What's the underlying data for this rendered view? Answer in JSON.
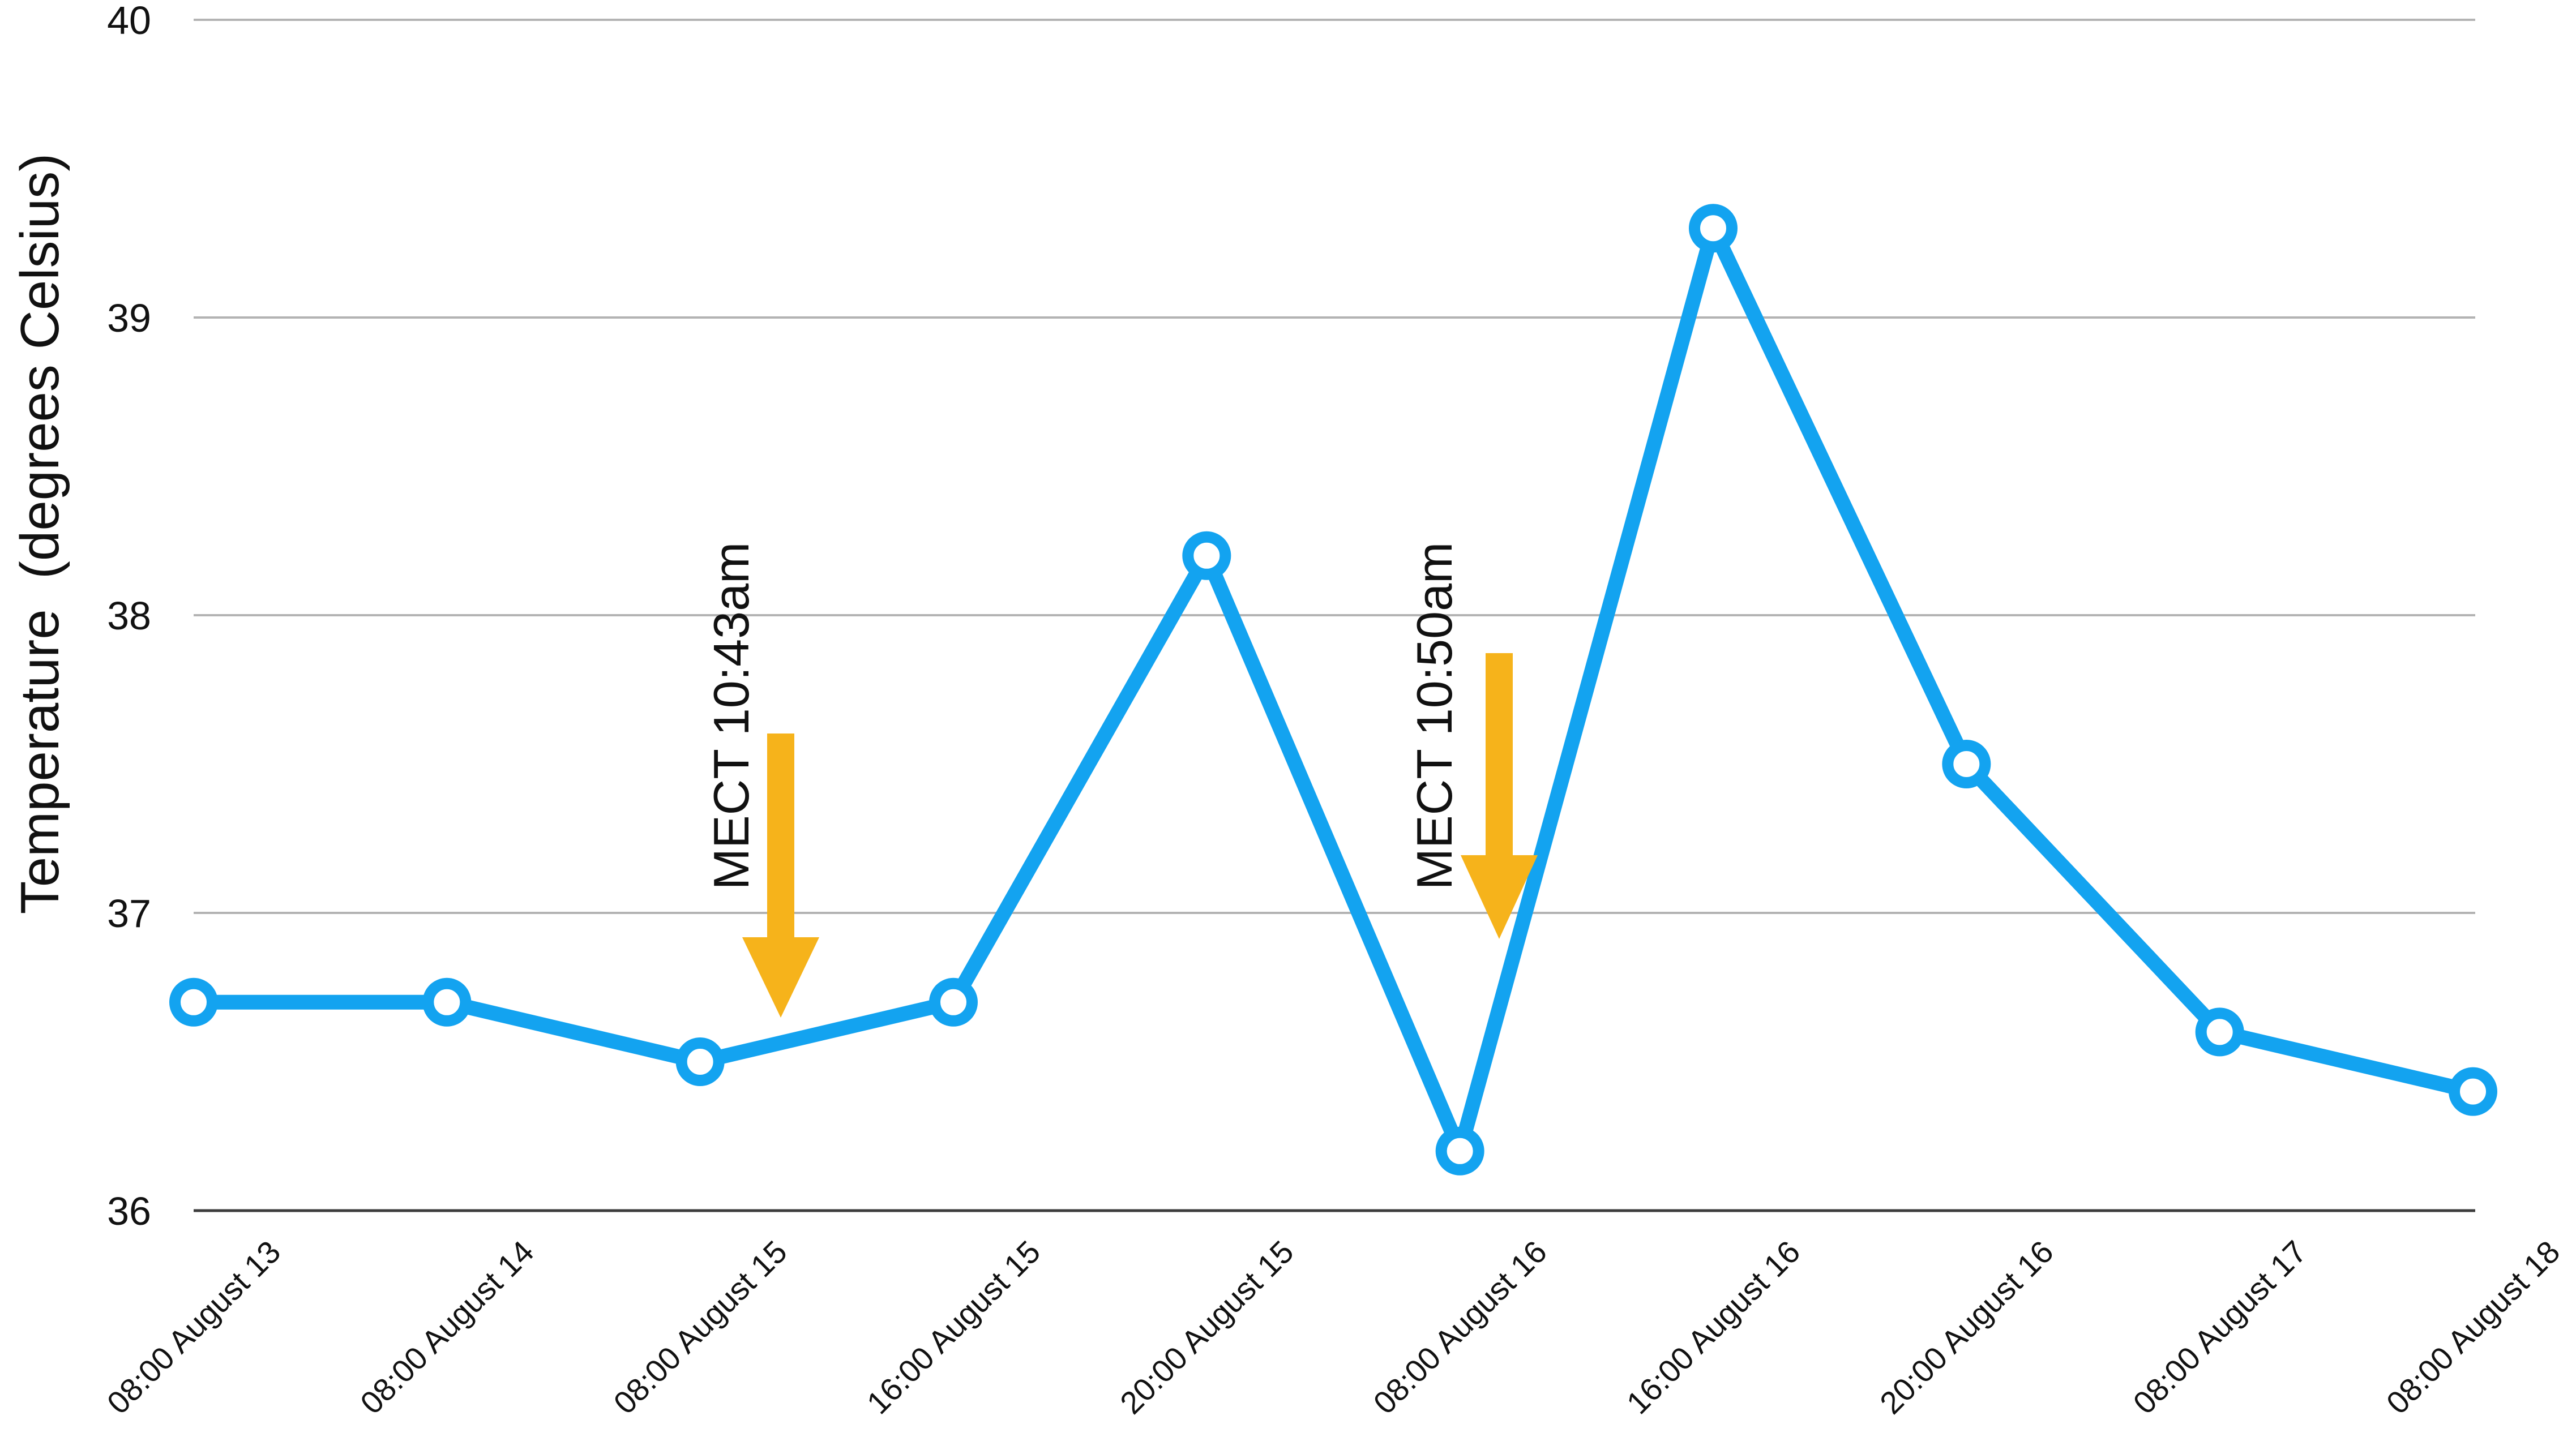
{
  "chart_data": {
    "type": "line",
    "ylabel": "Temperature  (degrees Celsius)",
    "categories": [
      "08:00 August 13",
      "08:00 August 14",
      "08:00 August 15",
      "16:00 August 15",
      "20:00 August 15",
      "08:00 August 16",
      "16:00 August 16",
      "20:00 August 16",
      "08:00 August 17",
      "08:00 August 18"
    ],
    "series": [
      {
        "values": [
          36.7,
          36.7,
          36.5,
          36.7,
          38.2,
          36.2,
          39.3,
          37.5,
          36.6,
          36.4
        ]
      }
    ],
    "ylim": [
      36,
      40
    ],
    "yticks": [
      36,
      37,
      38,
      39,
      40
    ],
    "grid": true,
    "legend": "none",
    "annotations": [
      {
        "text": "MECT 10:43am",
        "marker": "down-arrow"
      },
      {
        "text": "MECT 10:50am",
        "marker": "down-arrow"
      }
    ],
    "colors": {
      "line": "#13A3F0",
      "marker_fill": "#FFFFFF",
      "annotation_arrow": "#F6B31B",
      "grid": "#B3B3B3"
    }
  }
}
